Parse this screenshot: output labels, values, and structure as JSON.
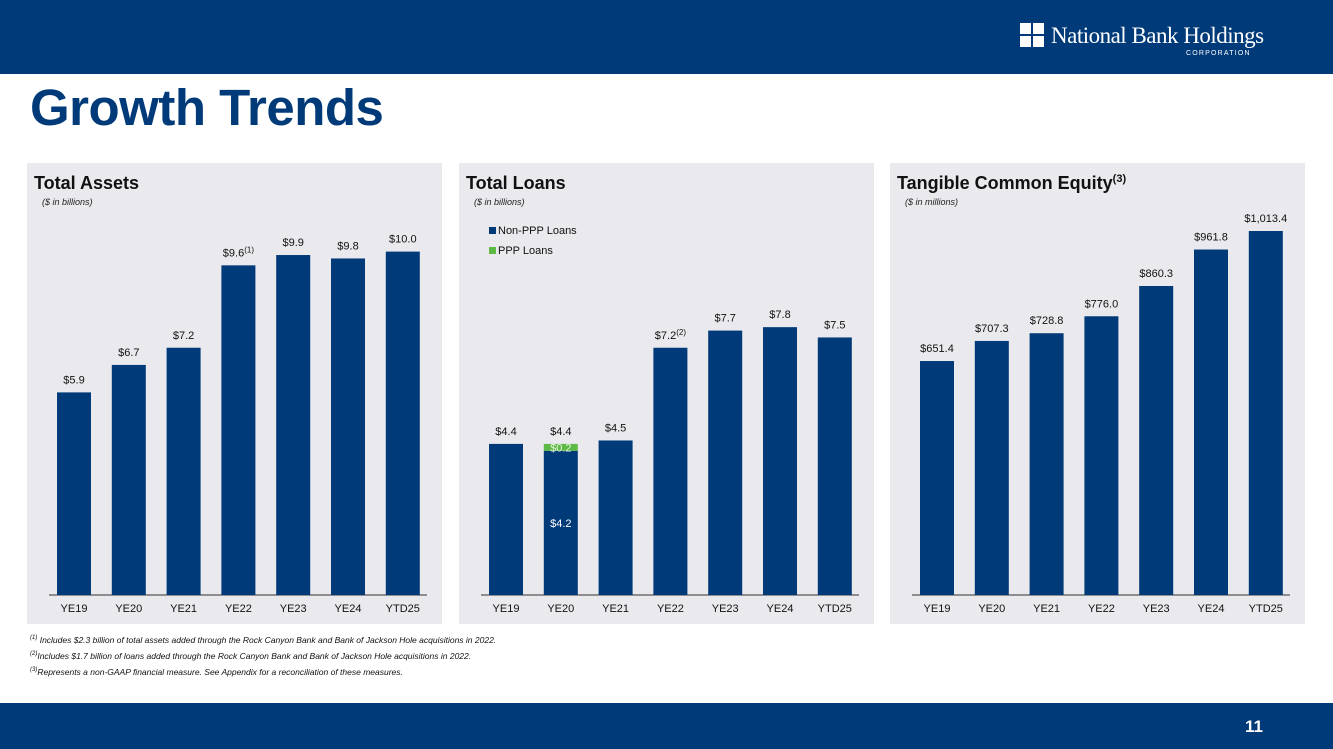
{
  "header": {
    "logo_name": "National Bank Holdings",
    "logo_sub": "CORPORATION"
  },
  "page": {
    "title": "Growth Trends",
    "number": "11"
  },
  "colors": {
    "navy": "#003a78",
    "ppp_green": "#5dba45",
    "panel_bg": "#e9e9ee"
  },
  "footnotes": [
    {
      "mark": "(1)",
      "text": " Includes $2.3 billion of total assets added through the Rock Canyon Bank and Bank of Jackson Hole acquisitions in 2022."
    },
    {
      "mark": "(2)",
      "text": "Includes $1.7 billion of loans added through the Rock Canyon Bank and Bank of Jackson Hole acquisitions in 2022."
    },
    {
      "mark": "(3)",
      "text": "Represents a non-GAAP financial measure.  See Appendix for a reconciliation of these measures."
    }
  ],
  "chart_data": [
    {
      "type": "bar",
      "title": "Total Assets",
      "title_note": "",
      "subtitle": "($ in billions)",
      "categories": [
        "YE19",
        "YE20",
        "YE21",
        "YE22",
        "YE23",
        "YE24",
        "YTD25"
      ],
      "values": [
        5.9,
        6.7,
        7.2,
        9.6,
        9.9,
        9.8,
        10.0
      ],
      "data_labels": [
        "$5.9",
        "$6.7",
        "$7.2",
        "$9.6",
        "$9.9",
        "$9.8",
        "$10.0"
      ],
      "label_notes": [
        "",
        "",
        "",
        "(1)",
        "",
        "",
        ""
      ],
      "ylim": [
        0,
        10.6
      ]
    },
    {
      "type": "bar",
      "title": "Total Loans",
      "title_note": "",
      "subtitle": "($ in billions)",
      "categories": [
        "YE19",
        "YE20",
        "YE21",
        "YE22",
        "YE23",
        "YE24",
        "YTD25"
      ],
      "series": [
        {
          "name": "Non-PPP Loans",
          "values": [
            4.4,
            4.2,
            4.5,
            7.2,
            7.7,
            7.8,
            7.5
          ]
        },
        {
          "name": "PPP Loans",
          "values": [
            0,
            0.2,
            0,
            0,
            0,
            0,
            0
          ]
        }
      ],
      "segment_labels": [
        {
          "index": 1,
          "series": 0,
          "text": "$4.2"
        },
        {
          "index": 1,
          "series": 1,
          "text": "$0.2"
        }
      ],
      "data_labels": [
        "$4.4",
        "$4.4",
        "$4.5",
        "$7.2",
        "$7.7",
        "$7.8",
        "$7.5"
      ],
      "label_notes": [
        "",
        "",
        "",
        "(2)",
        "",
        "",
        ""
      ],
      "legend": "top-left",
      "ylim": [
        0,
        10.6
      ]
    },
    {
      "type": "bar",
      "title": "Tangible Common Equity",
      "title_note": "(3)",
      "subtitle": "($ in millions)",
      "categories": [
        "YE19",
        "YE20",
        "YE21",
        "YE22",
        "YE23",
        "YE24",
        "YTD25"
      ],
      "values": [
        651.4,
        707.3,
        728.8,
        776.0,
        860.3,
        961.8,
        1013.4
      ],
      "data_labels": [
        "$651.4",
        "$707.3",
        "$728.8",
        "$776.0",
        "$860.3",
        "$961.8",
        "$1,013.4"
      ],
      "label_notes": [
        "",
        "",
        "",
        "",
        "",
        "",
        ""
      ],
      "ylim": [
        0,
        1013.4
      ]
    }
  ]
}
